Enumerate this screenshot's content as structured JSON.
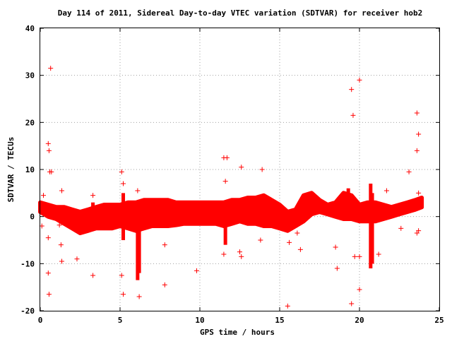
{
  "chart_data": {
    "type": "scatter",
    "title": "Day 114 of 2011, Sidereal Day-to-day VTEC variation (SDTVAR) for receiver hob2",
    "xlabel": "GPS time / hours",
    "ylabel": "SDTVAR / TECUs",
    "xlim": [
      0,
      25
    ],
    "ylim": [
      -20,
      40
    ],
    "xticks": [
      "0",
      "5",
      "10",
      "15",
      "20",
      "25"
    ],
    "yticks": [
      "-20",
      "-10",
      "0",
      "10",
      "20",
      "30",
      "40"
    ],
    "grid": true,
    "marker": "+",
    "color": "#ff0000",
    "bands": [
      {
        "x": [
          0.0,
          0.5,
          1.0,
          1.5,
          2.0,
          2.5,
          3.0,
          3.5,
          4.0,
          4.5,
          5.0,
          5.5,
          6.0,
          6.5,
          7.0,
          7.5,
          8.0,
          8.5,
          9.0,
          9.5,
          10.0,
          10.5,
          11.0,
          11.5,
          12.0,
          12.5,
          13.0,
          13.5,
          14.0,
          14.5,
          15.0,
          15.5,
          16.0,
          16.5,
          17.0,
          17.5,
          18.0,
          18.5,
          19.0,
          19.5,
          20.0,
          20.5,
          21.0,
          21.5,
          22.0,
          22.5,
          23.0,
          23.5,
          23.9
        ],
        "lower": [
          1.0,
          0.0,
          -0.5,
          -1.5,
          -2.5,
          -3.5,
          -3.0,
          -2.5,
          -2.5,
          -2.5,
          -2.0,
          -2.5,
          -3.0,
          -2.5,
          -2.0,
          -2.0,
          -2.0,
          -1.8,
          -1.5,
          -1.5,
          -1.5,
          -1.5,
          -1.5,
          -2.0,
          -1.5,
          -1.0,
          -1.5,
          -1.5,
          -2.0,
          -2.0,
          -2.5,
          -3.0,
          -2.0,
          -1.0,
          0.5,
          1.0,
          0.5,
          0.0,
          -0.5,
          -0.5,
          -1.0,
          -1.0,
          -1.0,
          -0.5,
          0.0,
          0.5,
          1.0,
          1.5,
          2.0
        ],
        "upper": [
          3.0,
          2.5,
          2.0,
          2.0,
          1.5,
          1.0,
          1.5,
          2.0,
          2.5,
          2.5,
          2.5,
          3.0,
          3.0,
          3.5,
          3.5,
          3.5,
          3.5,
          3.0,
          3.0,
          3.0,
          3.0,
          3.0,
          3.0,
          3.0,
          3.5,
          3.5,
          4.0,
          4.0,
          4.5,
          3.5,
          2.5,
          1.0,
          1.5,
          4.5,
          5.0,
          3.5,
          2.5,
          3.0,
          5.0,
          4.5,
          2.5,
          3.0,
          3.0,
          2.5,
          2.0,
          2.5,
          3.0,
          3.5,
          4.0
        ]
      }
    ],
    "spikes": [
      {
        "x": 3.3,
        "y": [
          -2,
          3
        ]
      },
      {
        "x": 5.2,
        "y": [
          -5,
          5
        ]
      },
      {
        "x": 6.1,
        "y": [
          -13.5,
          -1
        ]
      },
      {
        "x": 6.2,
        "y": [
          -12,
          0
        ]
      },
      {
        "x": 11.6,
        "y": [
          -6,
          0
        ]
      },
      {
        "x": 20.7,
        "y": [
          -11,
          7
        ]
      },
      {
        "x": 20.8,
        "y": [
          -10,
          5
        ]
      },
      {
        "x": 19.3,
        "y": [
          1,
          6
        ]
      },
      {
        "x": 16.8,
        "y": [
          1,
          5
        ]
      }
    ],
    "outliers": [
      {
        "x": 0.1,
        "y": -2
      },
      {
        "x": 0.2,
        "y": 4.5
      },
      {
        "x": 0.4,
        "y": 1
      },
      {
        "x": 0.5,
        "y": -4.5
      },
      {
        "x": 0.5,
        "y": 15.5
      },
      {
        "x": 0.55,
        "y": 14
      },
      {
        "x": 0.6,
        "y": 9.5
      },
      {
        "x": 0.7,
        "y": 9.5
      },
      {
        "x": 0.65,
        "y": 31.5
      },
      {
        "x": 0.5,
        "y": -12
      },
      {
        "x": 0.55,
        "y": -16.5
      },
      {
        "x": 1.2,
        "y": -1.8
      },
      {
        "x": 1.3,
        "y": -6
      },
      {
        "x": 1.35,
        "y": -9.5
      },
      {
        "x": 1.35,
        "y": 5.5
      },
      {
        "x": 2.3,
        "y": -9
      },
      {
        "x": 3.3,
        "y": -12.5
      },
      {
        "x": 3.3,
        "y": 4.5
      },
      {
        "x": 5.1,
        "y": -12.5
      },
      {
        "x": 5.2,
        "y": -16.5
      },
      {
        "x": 5.1,
        "y": 9.5
      },
      {
        "x": 5.2,
        "y": 7
      },
      {
        "x": 6.2,
        "y": -17
      },
      {
        "x": 6.1,
        "y": 5.5
      },
      {
        "x": 7.8,
        "y": -6
      },
      {
        "x": 7.8,
        "y": -14.5
      },
      {
        "x": 9.8,
        "y": -11.5
      },
      {
        "x": 11.5,
        "y": 12.5
      },
      {
        "x": 11.7,
        "y": 12.5
      },
      {
        "x": 11.6,
        "y": 7.5
      },
      {
        "x": 11.5,
        "y": -8
      },
      {
        "x": 12.6,
        "y": 10.5
      },
      {
        "x": 12.5,
        "y": -7.5
      },
      {
        "x": 12.6,
        "y": -8.5
      },
      {
        "x": 13.9,
        "y": 10
      },
      {
        "x": 13.8,
        "y": -5
      },
      {
        "x": 15.5,
        "y": -19
      },
      {
        "x": 15.6,
        "y": -5.5
      },
      {
        "x": 16.1,
        "y": -3.5
      },
      {
        "x": 16.3,
        "y": -7
      },
      {
        "x": 18.5,
        "y": -6.5
      },
      {
        "x": 18.6,
        "y": -11
      },
      {
        "x": 19.5,
        "y": 27
      },
      {
        "x": 19.6,
        "y": 21.5
      },
      {
        "x": 20.0,
        "y": 29
      },
      {
        "x": 19.7,
        "y": -8.5
      },
      {
        "x": 19.5,
        "y": -18.5
      },
      {
        "x": 20.0,
        "y": -15.5
      },
      {
        "x": 20.0,
        "y": -8.5
      },
      {
        "x": 21.2,
        "y": -8
      },
      {
        "x": 21.7,
        "y": 5.5
      },
      {
        "x": 22.6,
        "y": -2.5
      },
      {
        "x": 23.1,
        "y": 9.5
      },
      {
        "x": 23.6,
        "y": 22
      },
      {
        "x": 23.7,
        "y": 17.5
      },
      {
        "x": 23.6,
        "y": 14
      },
      {
        "x": 23.6,
        "y": -3.5
      },
      {
        "x": 23.7,
        "y": -3
      },
      {
        "x": 23.7,
        "y": 5
      }
    ]
  }
}
